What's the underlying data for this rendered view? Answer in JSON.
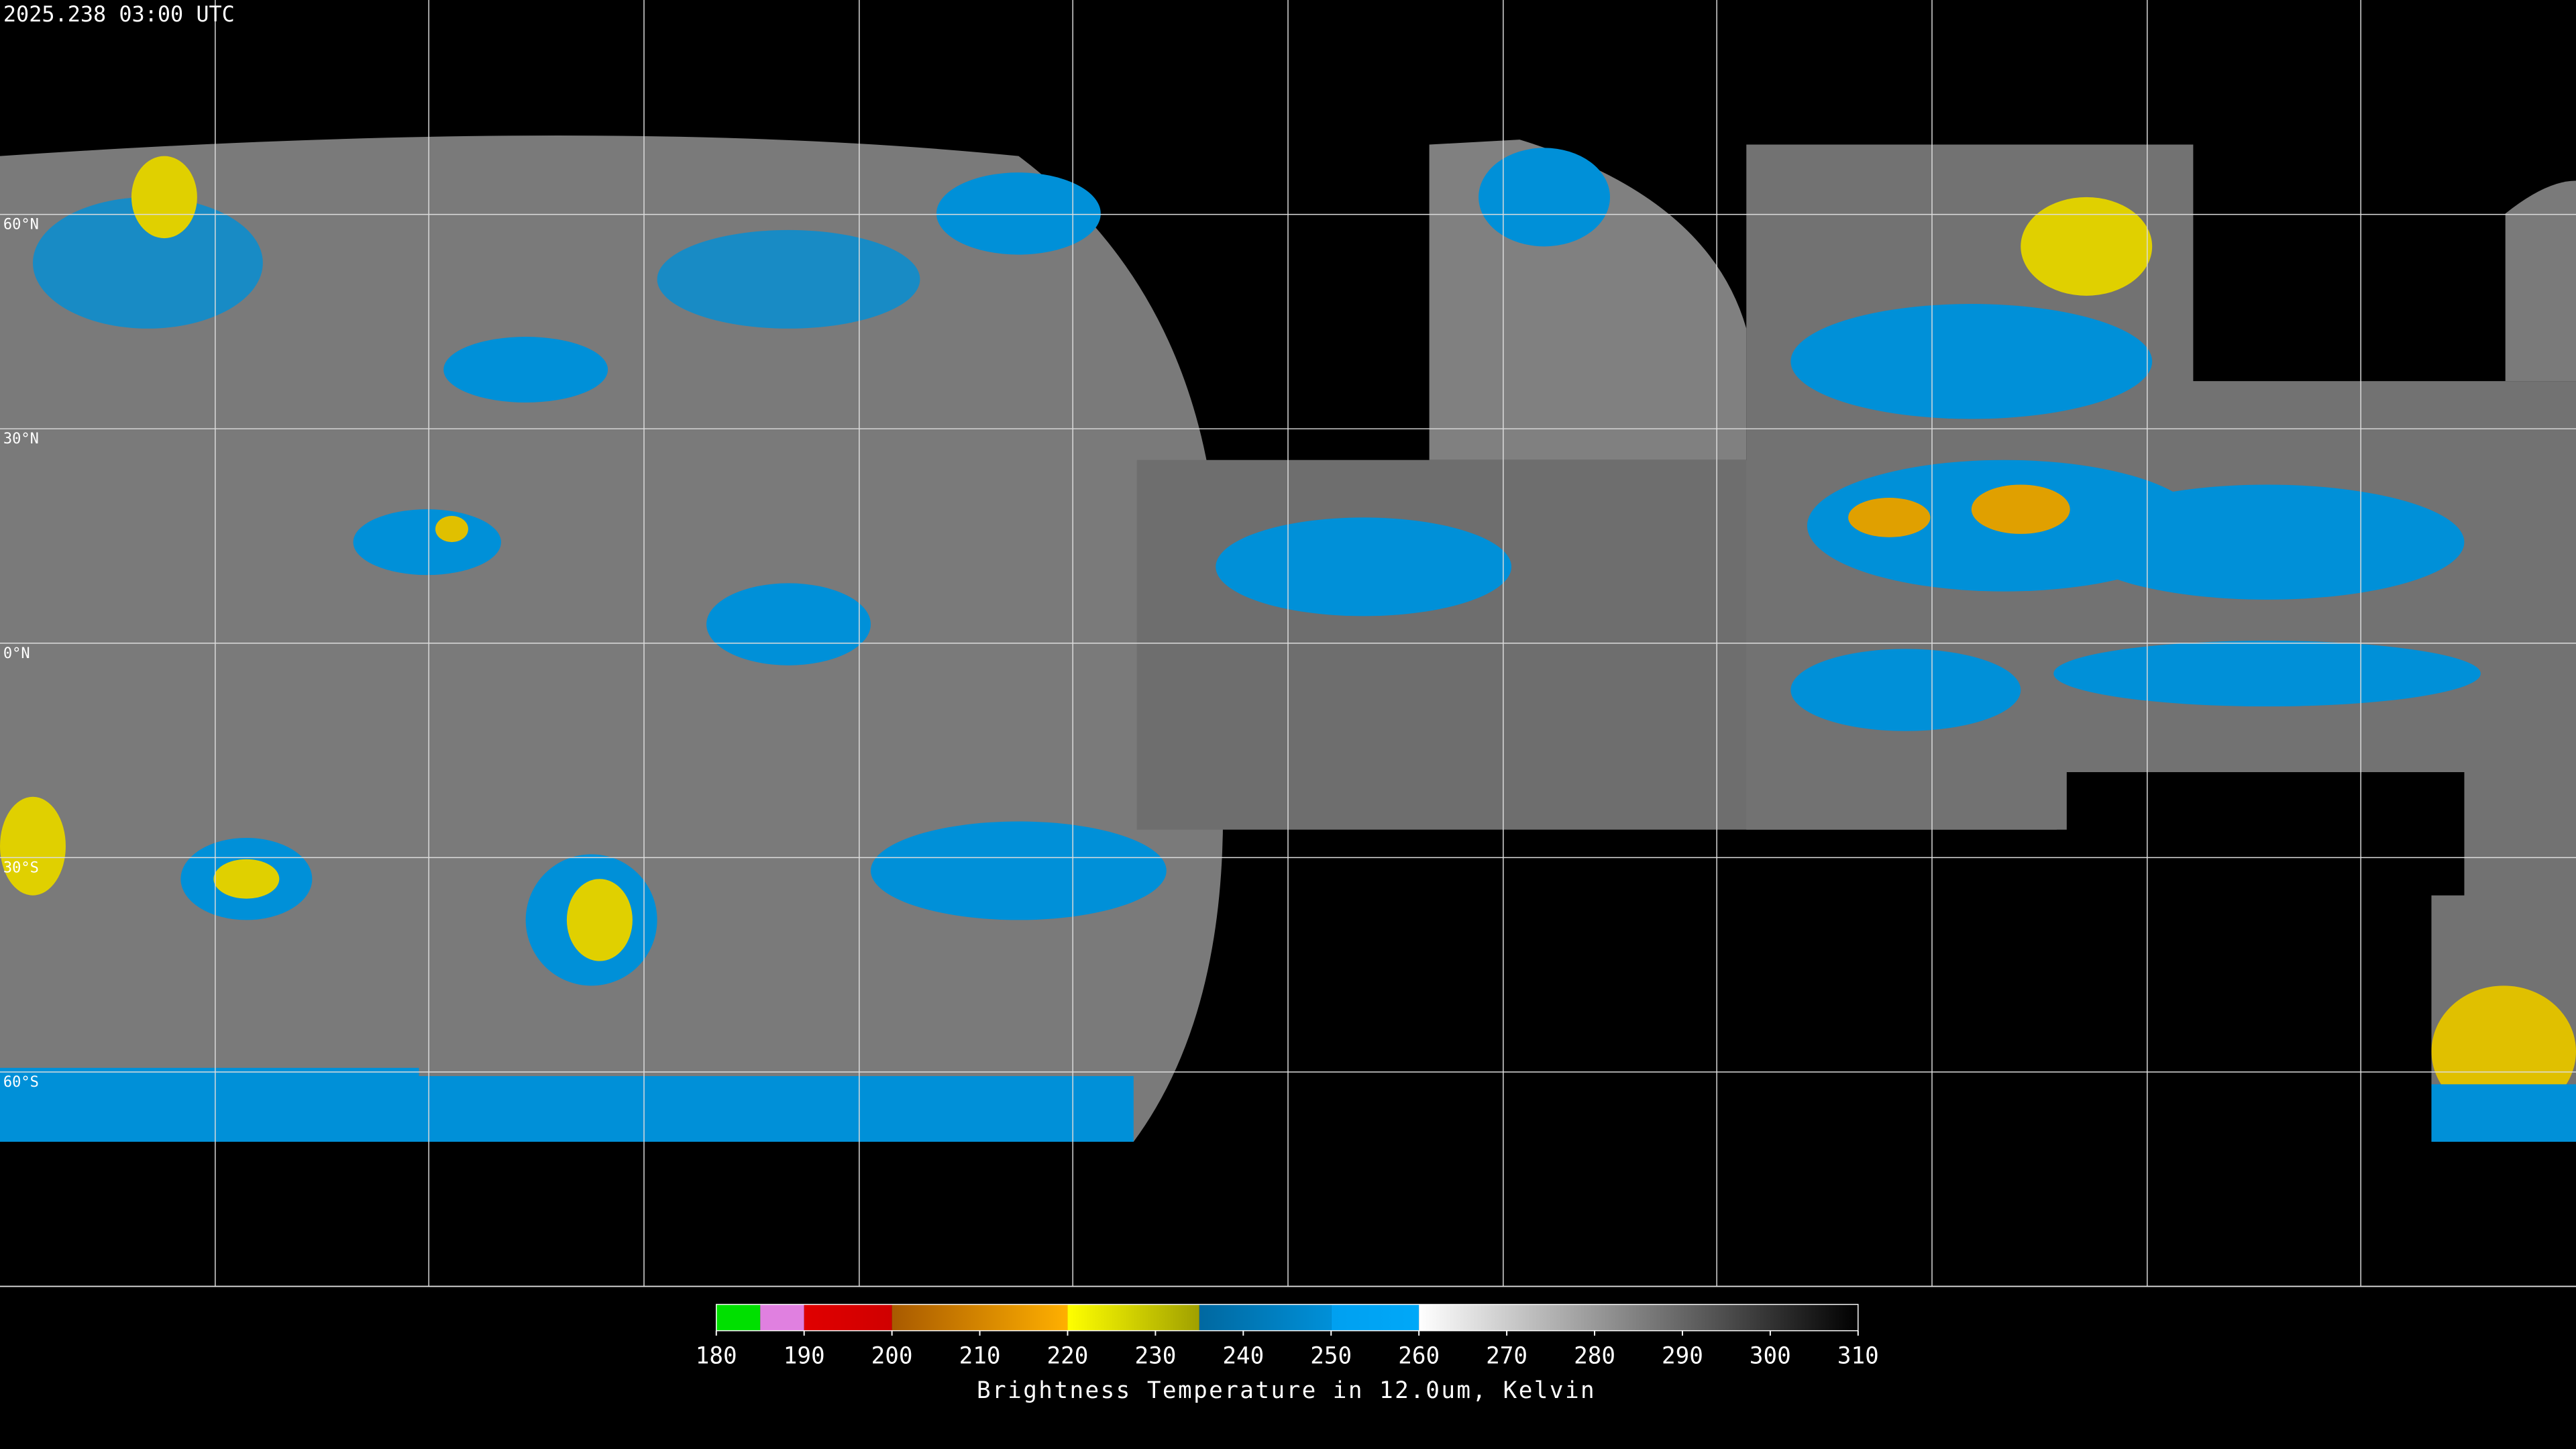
{
  "header": {
    "timestamp": "2025.238 03:00 UTC"
  },
  "map": {
    "latitudes": [
      {
        "value": 60,
        "label": "60°N"
      },
      {
        "value": 30,
        "label": "30°N"
      },
      {
        "value": 0,
        "label": "0°N"
      },
      {
        "value": -30,
        "label": "30°S"
      },
      {
        "value": -60,
        "label": "60°S"
      }
    ]
  },
  "colorbar": {
    "title": "Brightness Temperature in 12.0um, Kelvin",
    "lim": [
      180,
      310
    ],
    "ticks": [
      180,
      190,
      200,
      210,
      220,
      230,
      240,
      250,
      260,
      270,
      280,
      290,
      300,
      310
    ],
    "bands": [
      {
        "from": 180,
        "to": 185,
        "colors": [
          "#00e000",
          "#00e000"
        ]
      },
      {
        "from": 185,
        "to": 190,
        "colors": [
          "#e080e0",
          "#e080e0"
        ]
      },
      {
        "from": 190,
        "to": 200,
        "colors": [
          "#e00000",
          "#d00000"
        ]
      },
      {
        "from": 200,
        "to": 220,
        "colors": [
          "#a85a00",
          "#ffb000"
        ]
      },
      {
        "from": 220,
        "to": 235,
        "colors": [
          "#ffff00",
          "#a0a000"
        ]
      },
      {
        "from": 235,
        "to": 250,
        "colors": [
          "#0068a0",
          "#0090d8"
        ]
      },
      {
        "from": 250,
        "to": 260,
        "colors": [
          "#00a0f0",
          "#00a8f8"
        ]
      },
      {
        "from": 260,
        "to": 310,
        "colors": [
          "#ffffff",
          "#000000"
        ]
      }
    ]
  }
}
